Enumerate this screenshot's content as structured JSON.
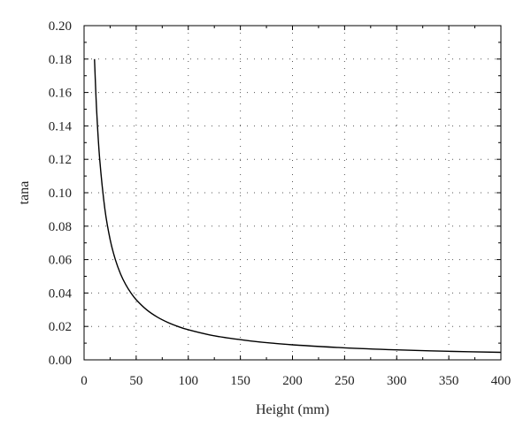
{
  "chart_data": {
    "type": "line",
    "title": "",
    "xlabel": "Height (mm)",
    "ylabel": "tana",
    "xlim": [
      0,
      400
    ],
    "ylim": [
      0,
      0.2
    ],
    "x_ticks": [
      "0",
      "50",
      "100",
      "150",
      "200",
      "250",
      "300",
      "350",
      "400"
    ],
    "y_ticks": [
      "0.00",
      "0.02",
      "0.04",
      "0.06",
      "0.08",
      "0.10",
      "0.12",
      "0.14",
      "0.16",
      "0.18",
      "0.20"
    ],
    "grid": true,
    "legend": "none",
    "line_color": "#000000",
    "series": [
      {
        "x": [
          10,
          12,
          15,
          20,
          25,
          30,
          35,
          40,
          45,
          50,
          60,
          70,
          80,
          90,
          100,
          120,
          140,
          160,
          180,
          200,
          250,
          300,
          350,
          400
        ],
        "values": [
          0.18,
          0.15,
          0.12,
          0.09,
          0.072,
          0.06,
          0.0514,
          0.045,
          0.04,
          0.036,
          0.03,
          0.0257,
          0.0225,
          0.02,
          0.018,
          0.015,
          0.0129,
          0.0113,
          0.01,
          0.009,
          0.0072,
          0.006,
          0.0051,
          0.0045
        ]
      }
    ]
  }
}
